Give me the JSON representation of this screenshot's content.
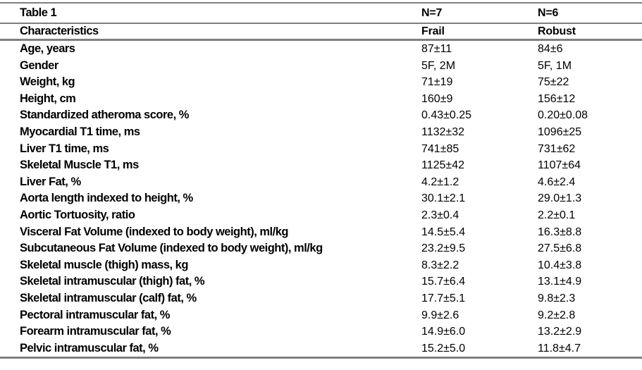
{
  "page": {
    "background_color": "#ffffff",
    "rule_color": "#7f7f7f",
    "text_color": "#000000"
  },
  "table": {
    "header_row_1": {
      "title": "Table 1",
      "frail_n": "N=7",
      "robust_n": "N=6"
    },
    "header_row_2": {
      "characteristics": "Characteristics",
      "frail": "Frail",
      "robust": "Robust"
    },
    "rows": [
      {
        "characteristic": "Age, years",
        "frail": "87±11",
        "robust": "84±6"
      },
      {
        "characteristic": "Gender",
        "frail": "5F, 2M",
        "robust": "5F, 1M"
      },
      {
        "characteristic": "Weight, kg",
        "frail": "71±19",
        "robust": "75±22"
      },
      {
        "characteristic": "Height, cm",
        "frail": "160±9",
        "robust": "156±12"
      },
      {
        "characteristic": "Standardized atheroma score, %",
        "frail": "0.43±0.25",
        "robust": "0.20±0.08"
      },
      {
        "characteristic": "Myocardial T1 time, ms",
        "frail": "1132±32",
        "robust": "1096±25"
      },
      {
        "characteristic": "Liver T1 time, ms",
        "frail": "741±85",
        "robust": "731±62"
      },
      {
        "characteristic": "Skeletal Muscle T1, ms",
        "frail": "1125±42",
        "robust": "1107±64"
      },
      {
        "characteristic": "Liver Fat, %",
        "frail": "4.2±1.2",
        "robust": "4.6±2.4"
      },
      {
        "characteristic": "Aorta length indexed to height, %",
        "frail": "30.1±2.1",
        "robust": "29.0±1.3"
      },
      {
        "characteristic": "Aortic Tortuosity, ratio",
        "frail": "2.3±0.4",
        "robust": "2.2±0.1"
      },
      {
        "characteristic": "Visceral Fat Volume (indexed to body weight), ml/kg",
        "frail": "14.5±5.4",
        "robust": "16.3±8.8"
      },
      {
        "characteristic": "Subcutaneous Fat Volume (indexed to body weight), ml/kg",
        "frail": "23.2±9.5",
        "robust": "27.5±6.8"
      },
      {
        "characteristic": "Skeletal muscle (thigh) mass, kg",
        "frail": "8.3±2.2",
        "robust": "10.4±3.8"
      },
      {
        "characteristic": "Skeletal intramuscular (thigh) fat, %",
        "frail": "15.7±6.4",
        "robust": "13.1±4.9"
      },
      {
        "characteristic": "Skeletal intramuscular (calf) fat, %",
        "frail": "17.7±5.1",
        "robust": "9.8±2.3"
      },
      {
        "characteristic": "Pectoral intramuscular fat, %",
        "frail": "9.9±2.6",
        "robust": "9.2±2.8"
      },
      {
        "characteristic": "Forearm intramuscular fat, %",
        "frail": "14.9±6.0",
        "robust": "13.2±2.9"
      },
      {
        "characteristic": "Pelvic intramuscular fat, %",
        "frail": "15.2±5.0",
        "robust": "11.8±4.7"
      }
    ]
  }
}
